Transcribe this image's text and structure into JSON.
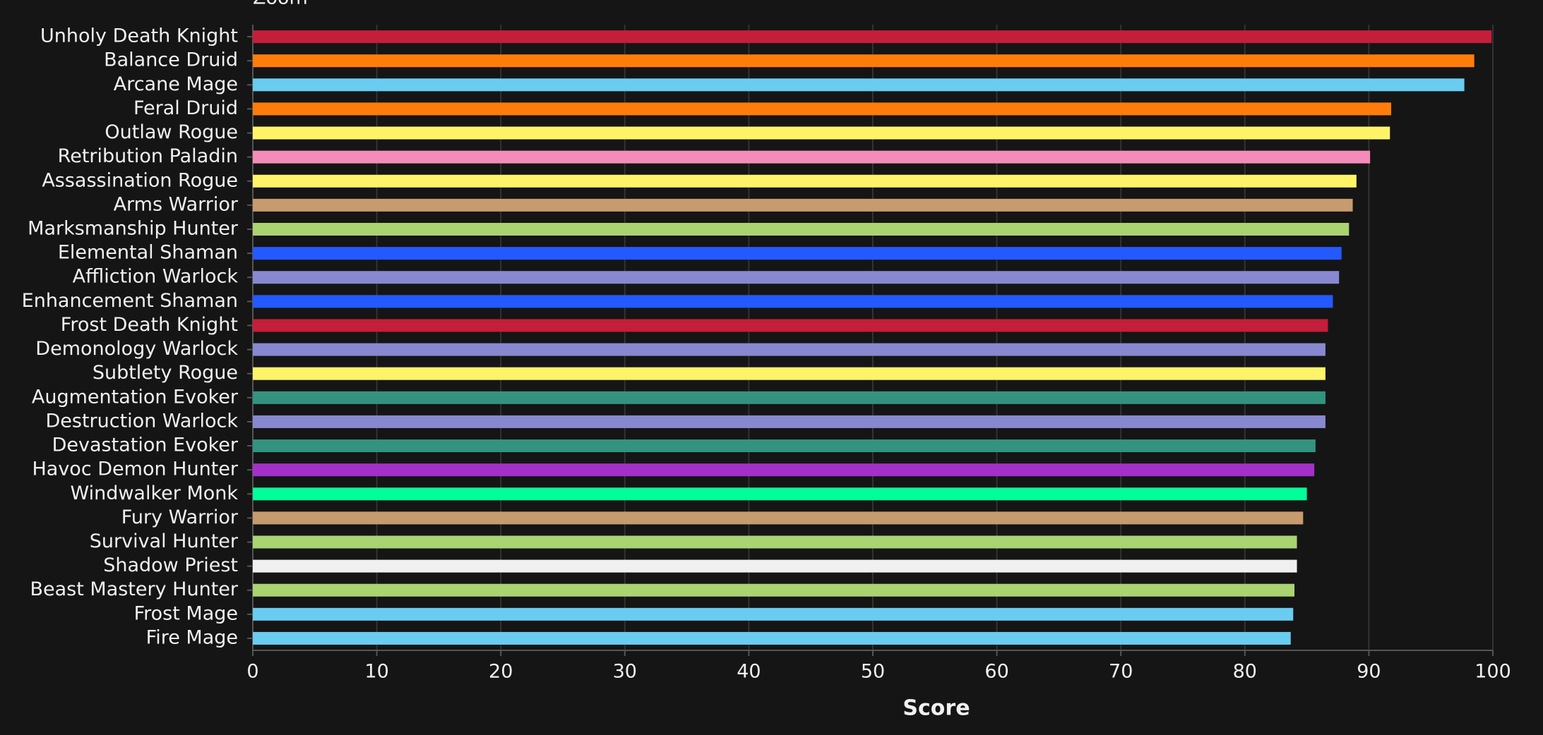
{
  "chart_data": {
    "type": "bar",
    "orientation": "horizontal",
    "zoom_label": "Zoom",
    "x_label": "Score",
    "categories": [
      "Unholy Death Knight",
      "Balance Druid",
      "Arcane Mage",
      "Feral Druid",
      "Outlaw Rogue",
      "Retribution Paladin",
      "Assassination Rogue",
      "Arms Warrior",
      "Marksmanship Hunter",
      "Elemental Shaman",
      "Affliction Warlock",
      "Enhancement Shaman",
      "Frost Death Knight",
      "Demonology Warlock",
      "Subtlety Rogue",
      "Augmentation Evoker",
      "Destruction Warlock",
      "Devastation Evoker",
      "Havoc Demon Hunter",
      "Windwalker Monk",
      "Fury Warrior",
      "Survival Hunter",
      "Shadow Priest",
      "Beast Mastery Hunter",
      "Frost Mage",
      "Fire Mage"
    ],
    "values": [
      99.9,
      98.5,
      97.7,
      91.8,
      91.7,
      90.1,
      89.0,
      88.7,
      88.4,
      87.8,
      87.6,
      87.1,
      86.7,
      86.5,
      86.5,
      86.5,
      86.5,
      85.7,
      85.6,
      85.0,
      84.7,
      84.2,
      84.2,
      84.0,
      83.9,
      83.7
    ],
    "colors": [
      "#c41e3a",
      "#ff7c0a",
      "#69ccf0",
      "#ff7c0a",
      "#fff468",
      "#f48cba",
      "#fff468",
      "#c69b6d",
      "#aad372",
      "#2459ff",
      "#8788d0",
      "#2459ff",
      "#c41e3a",
      "#8788d0",
      "#fff468",
      "#33937f",
      "#8788d0",
      "#33937f",
      "#a330c9",
      "#00ff98",
      "#c69b6d",
      "#aad372",
      "#f0f0f0",
      "#aad372",
      "#69ccf0",
      "#69ccf0"
    ],
    "xlim": [
      0,
      100
    ],
    "xticks": [
      0,
      10,
      20,
      30,
      40,
      50,
      60,
      70,
      80,
      90,
      100
    ],
    "grid": true
  }
}
